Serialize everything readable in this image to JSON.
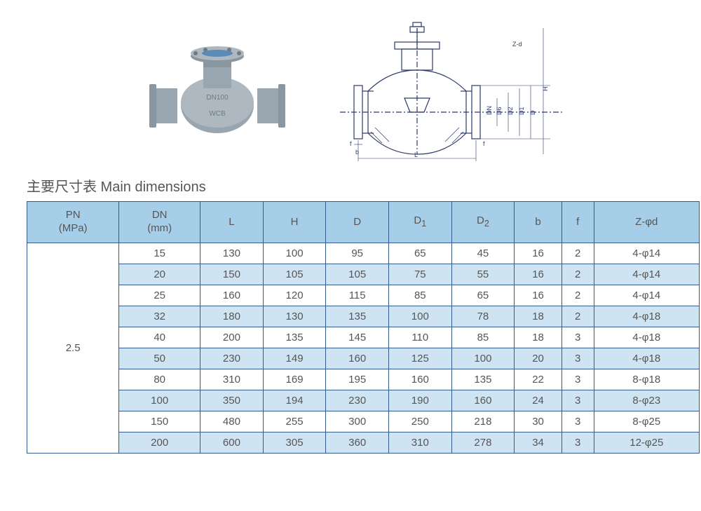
{
  "title": "主要尺寸表 Main dimensions",
  "figures": {
    "photo_label": "valve-photo",
    "diagram_label": "valve-technical-drawing",
    "diagram_dim_labels": [
      "Z-d",
      "H",
      "D",
      "D1",
      "D2",
      "D6",
      "DN",
      "f",
      "f",
      "b",
      "L"
    ]
  },
  "colors": {
    "header_bg": "#a7cee9",
    "row_alt_bg": "#cfe4f2",
    "row_bg": "#ffffff",
    "border": "#355a8e",
    "text": "#555555",
    "valve_body": "#9aa6af",
    "valve_shadow": "#6f7b84",
    "valve_top": "#5a8bb5",
    "drawing_stroke": "#2b3a6a"
  },
  "table": {
    "columns": [
      "PN\n(MPa)",
      "DN\n(mm)",
      "L",
      "H",
      "D",
      "D1",
      "D2",
      "b",
      "f",
      "Z-φd"
    ],
    "pn_value": "2.5",
    "rows": [
      [
        "15",
        "130",
        "100",
        "95",
        "65",
        "45",
        "16",
        "2",
        "4-φ14"
      ],
      [
        "20",
        "150",
        "105",
        "105",
        "75",
        "55",
        "16",
        "2",
        "4-φ14"
      ],
      [
        "25",
        "160",
        "120",
        "115",
        "85",
        "65",
        "16",
        "2",
        "4-φ14"
      ],
      [
        "32",
        "180",
        "130",
        "135",
        "100",
        "78",
        "18",
        "2",
        "4-φ18"
      ],
      [
        "40",
        "200",
        "135",
        "145",
        "110",
        "85",
        "18",
        "3",
        "4-φ18"
      ],
      [
        "50",
        "230",
        "149",
        "160",
        "125",
        "100",
        "20",
        "3",
        "4-φ18"
      ],
      [
        "80",
        "310",
        "169",
        "195",
        "160",
        "135",
        "22",
        "3",
        "8-φ18"
      ],
      [
        "100",
        "350",
        "194",
        "230",
        "190",
        "160",
        "24",
        "3",
        "8-φ23"
      ],
      [
        "150",
        "480",
        "255",
        "300",
        "250",
        "218",
        "30",
        "3",
        "8-φ25"
      ],
      [
        "200",
        "600",
        "305",
        "360",
        "310",
        "278",
        "34",
        "3",
        "12-φ25"
      ]
    ]
  }
}
